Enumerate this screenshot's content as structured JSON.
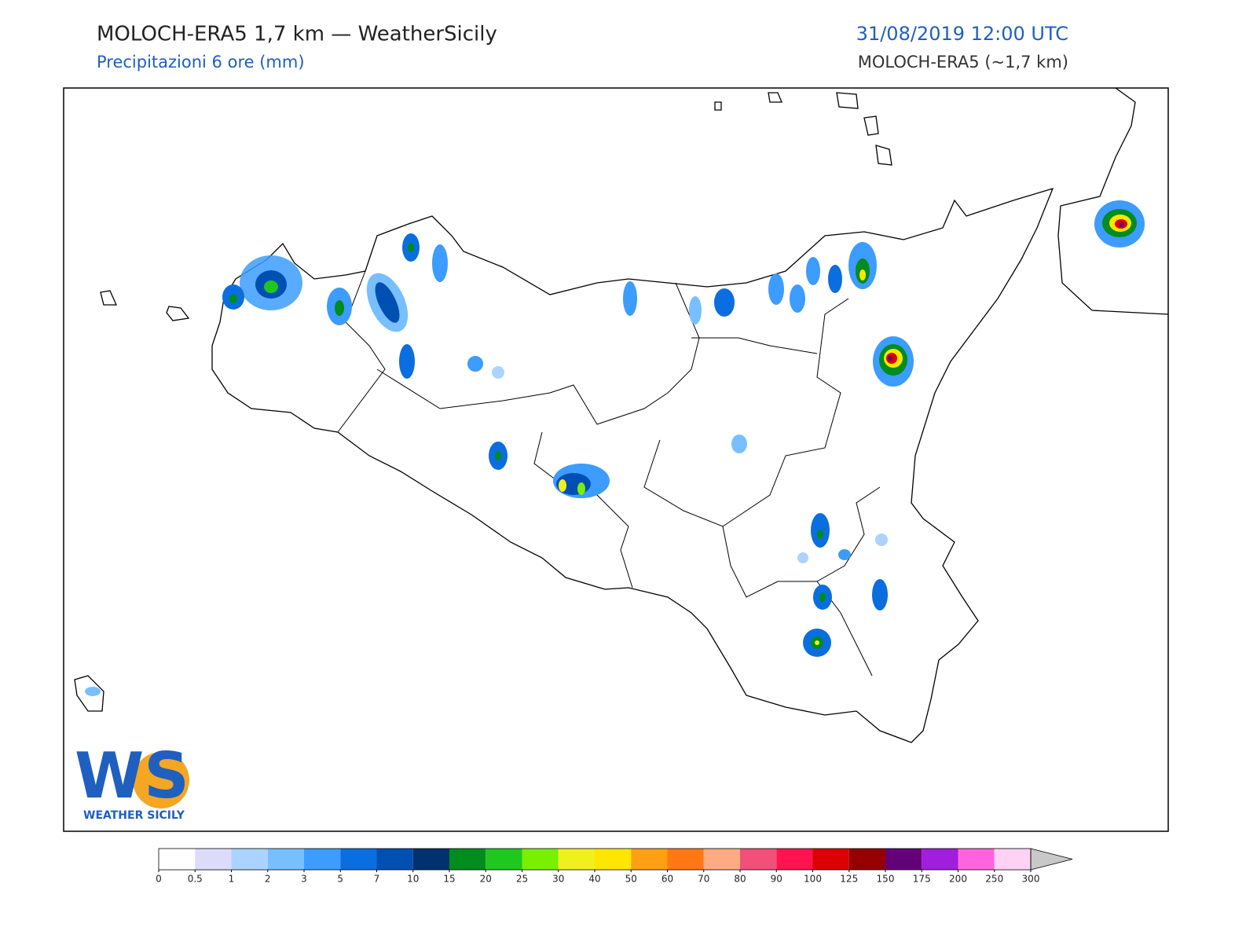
{
  "header": {
    "title": "MOLOCH-ERA5 1,7 km — WeatherSicily",
    "subtitle": "Precipitazioni 6 ore (mm)",
    "datetime": "31/08/2019 12:00 UTC",
    "model": "MOLOCH-ERA5 (~1,7 km)"
  },
  "logo": {
    "initials": "WS",
    "name": "WEATHER SICILY"
  },
  "colorbar": {
    "ticks": [
      0,
      0.5,
      1,
      2,
      3,
      5,
      7,
      10,
      15,
      20,
      25,
      30,
      40,
      50,
      60,
      70,
      80,
      90,
      100,
      125,
      150,
      175,
      200,
      250,
      300
    ],
    "colors": [
      "#ffffff",
      "#dcdcfa",
      "#aad4ff",
      "#78bfff",
      "#3c9cff",
      "#0a6ee0",
      "#0050b4",
      "#00326e",
      "#008c1e",
      "#1ec81e",
      "#78f000",
      "#f0f01e",
      "#ffe600",
      "#ffa014",
      "#ff7814",
      "#ffaa82",
      "#f0507a",
      "#ff1450",
      "#dc0000",
      "#960000",
      "#640078",
      "#a01edc",
      "#ff64dc",
      "#ffd2f5"
    ],
    "extend_color": "#c8c8c8"
  }
}
